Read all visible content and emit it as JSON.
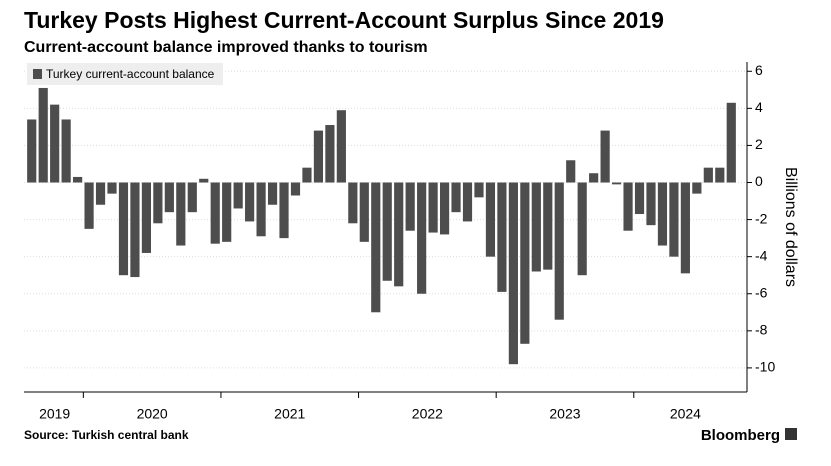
{
  "chart_data": {
    "type": "bar",
    "title": "Turkey Posts Highest Current-Account Surplus Since 2019",
    "subtitle": "Current-account balance improved thanks to tourism",
    "y_axis_label": "Billions of dollars",
    "source": "Source: Turkish central bank",
    "brand": "Bloomberg",
    "series": [
      {
        "name": "Turkey current-account balance",
        "color": "#4d4d4d",
        "values": [
          3.4,
          5.1,
          4.2,
          3.4,
          0.3,
          -2.5,
          -1.2,
          -0.6,
          -5.0,
          -5.1,
          -3.8,
          -2.2,
          -1.6,
          -3.4,
          -1.6,
          0.2,
          -3.3,
          -3.2,
          -1.4,
          -2.1,
          -2.9,
          -1.2,
          -3.0,
          -0.7,
          0.8,
          2.8,
          3.1,
          3.9,
          -2.2,
          -3.2,
          -7.0,
          -5.3,
          -5.6,
          -2.6,
          -6.0,
          -2.7,
          -2.8,
          -1.6,
          -2.1,
          -0.8,
          -4.0,
          -5.9,
          -9.8,
          -8.7,
          -4.8,
          -4.7,
          -7.4,
          1.2,
          -5.0,
          0.5,
          2.8,
          -0.1,
          -2.6,
          -1.7,
          -2.3,
          -3.4,
          -4.0,
          -4.9,
          -0.6,
          0.8,
          0.8,
          4.3
        ]
      }
    ],
    "year_groups": [
      {
        "label": "2019",
        "count": 5
      },
      {
        "label": "2020",
        "count": 12
      },
      {
        "label": "2021",
        "count": 12
      },
      {
        "label": "2022",
        "count": 12
      },
      {
        "label": "2023",
        "count": 12
      },
      {
        "label": "2024",
        "count": 9
      }
    ],
    "ylim": [
      -11.3,
      6.5
    ],
    "yticks": [
      6,
      4,
      2,
      0,
      -2,
      -4,
      -6,
      -8,
      -10
    ],
    "y_axis_side": "right",
    "legend": "top-left"
  }
}
